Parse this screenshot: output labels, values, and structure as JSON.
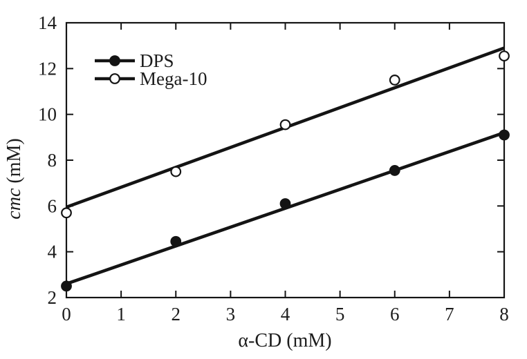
{
  "chart_data": {
    "type": "scatter",
    "title": "",
    "xlabel": "α-CD (mM)",
    "ylabel": "cmc (mM)",
    "ylabel_parts": [
      "cmc",
      " (mM)"
    ],
    "xlim": [
      0,
      8
    ],
    "ylim": [
      2,
      14
    ],
    "xticks": [
      0,
      1,
      2,
      3,
      4,
      5,
      6,
      7,
      8
    ],
    "yticks": [
      2,
      4,
      6,
      8,
      10,
      12,
      14
    ],
    "grid": false,
    "legend_position": "top-left-inside",
    "x": [
      0,
      2,
      4,
      6,
      8
    ],
    "series": [
      {
        "name": "DPS",
        "marker": "filled-circle",
        "values": [
          2.5,
          4.45,
          6.1,
          7.55,
          9.1
        ],
        "fit_line": {
          "x": [
            0,
            8
          ],
          "y": [
            2.6,
            9.2
          ]
        }
      },
      {
        "name": "Mega-10",
        "marker": "open-circle",
        "values": [
          5.7,
          7.5,
          9.55,
          11.5,
          12.55
        ],
        "fit_line": {
          "x": [
            0,
            8
          ],
          "y": [
            5.95,
            12.9
          ]
        }
      }
    ],
    "colors": {
      "foreground": "#141414",
      "text": "#1c1c1c",
      "background": "#ffffff"
    }
  }
}
